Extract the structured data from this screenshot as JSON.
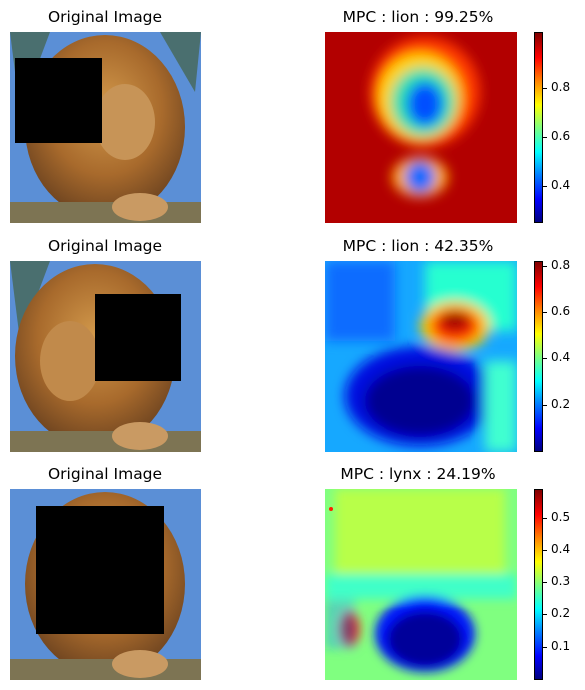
{
  "figure": {
    "rows": [
      {
        "left_title": "Original Image",
        "right_title": "MPC : lion : 99.25%",
        "colorbar_ticks": [
          "0.4",
          "0.6",
          "0.8"
        ]
      },
      {
        "left_title": "Original Image",
        "right_title": "MPC : lion : 42.35%",
        "colorbar_ticks": [
          "0.2",
          "0.4",
          "0.6",
          "0.8"
        ]
      },
      {
        "left_title": "Original Image",
        "right_title": "MPC : lynx : 24.19%",
        "colorbar_ticks": [
          "0.1",
          "0.2",
          "0.3",
          "0.4",
          "0.5"
        ]
      }
    ],
    "colormap": "jet",
    "occlusion_color": "#000000"
  }
}
